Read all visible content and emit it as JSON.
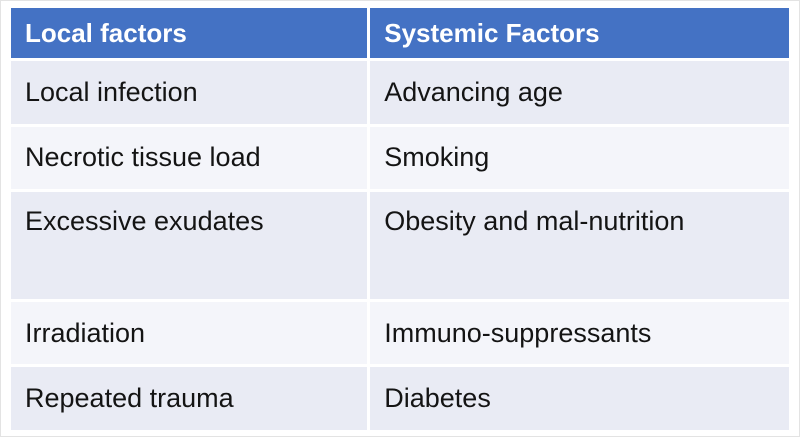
{
  "table": {
    "header": {
      "local": "Local factors",
      "systemic": "Systemic Factors"
    },
    "rows": [
      [
        "Local infection",
        "Advancing age"
      ],
      [
        "Necrotic tissue load",
        "Smoking"
      ],
      [
        "Excessive exudates",
        "Obesity and mal-nutrition"
      ],
      [
        "Irradiation",
        "Immuno-suppressants"
      ],
      [
        "Repeated trauma",
        "Diabetes"
      ]
    ],
    "colors": {
      "header_bg": "#4472C4",
      "header_text": "#FFFFFF",
      "row_band_dark": "#E9EBF4",
      "row_band_light": "#F4F5FA",
      "body_text": "#141414"
    }
  }
}
